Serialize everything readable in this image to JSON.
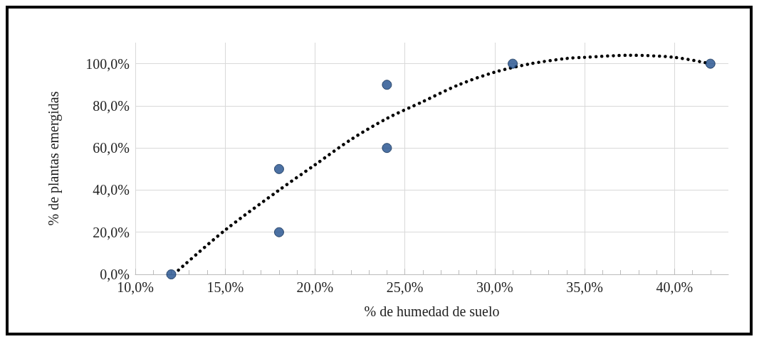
{
  "chart_data": {
    "type": "scatter",
    "xlabel": "% de humedad de suelo",
    "ylabel": "% de plantas emergidas",
    "xlim": [
      10,
      43
    ],
    "ylim": [
      0,
      110
    ],
    "xticks": [
      {
        "value": 10,
        "label": "10,0%"
      },
      {
        "value": 15,
        "label": "15,0%"
      },
      {
        "value": 20,
        "label": "20,0%"
      },
      {
        "value": 25,
        "label": "25,0%"
      },
      {
        "value": 30,
        "label": "30,0%"
      },
      {
        "value": 35,
        "label": "35,0%"
      },
      {
        "value": 40,
        "label": "40,0%"
      }
    ],
    "yticks": [
      {
        "value": 0,
        "label": "0,0%"
      },
      {
        "value": 20,
        "label": "20,0%"
      },
      {
        "value": 40,
        "label": "40,0%"
      },
      {
        "value": 60,
        "label": "60,0%"
      },
      {
        "value": 80,
        "label": "80,0%"
      },
      {
        "value": 100,
        "label": "100,0%"
      }
    ],
    "grid": true,
    "marker": "circle",
    "series": [
      {
        "color": "#1f4e8c",
        "x": [
          12,
          18,
          18,
          24,
          24,
          31,
          42
        ],
        "values": [
          0,
          50,
          20,
          90,
          60,
          100,
          100
        ]
      },
      {
        "type": "line",
        "color": "#000000",
        "line_style": "dotted",
        "marker": "none",
        "x": [
          12.4,
          15,
          18,
          20,
          22,
          24,
          26,
          28,
          30,
          32,
          34,
          35,
          37.5,
          40,
          42
        ],
        "values": [
          2,
          21,
          40,
          52,
          64,
          74,
          82,
          90,
          96,
          100,
          102.5,
          103,
          104,
          103,
          100
        ]
      }
    ]
  }
}
